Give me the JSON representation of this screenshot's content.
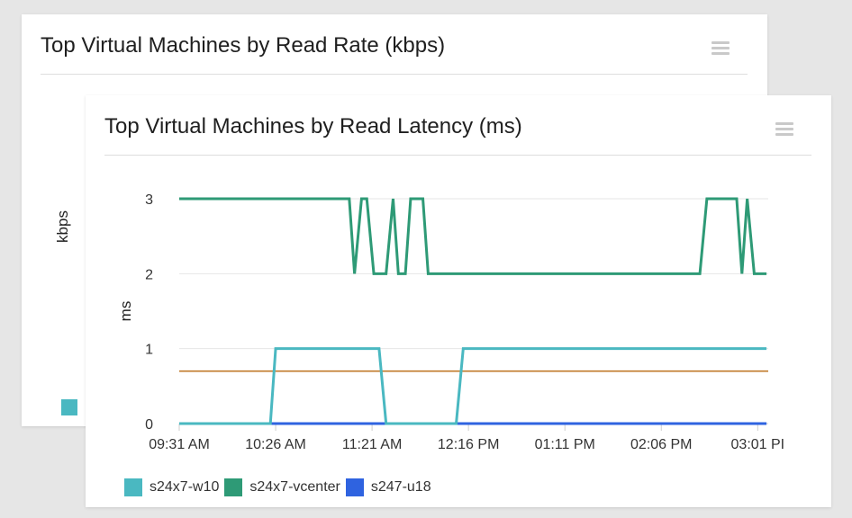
{
  "back_card": {
    "title": "Top Virtual Machines by Read Rate (kbps)",
    "ylabel": "kbps",
    "legend_swatch_color": "#4ab8c1"
  },
  "chart_data": {
    "type": "line",
    "title": "Top Virtual Machines by Read Latency (ms)",
    "xlabel": "",
    "ylabel": "ms",
    "ylim": [
      0,
      3
    ],
    "y_ticks": [
      "0",
      "1",
      "2",
      "3"
    ],
    "x_ticks": [
      "09:31 AM",
      "10:26 AM",
      "11:21 AM",
      "12:16 PM",
      "01:11 PM",
      "02:06 PM",
      "03:01 PI"
    ],
    "x_tick_minutes": [
      0,
      55,
      110,
      165,
      220,
      275,
      330
    ],
    "x_range_minutes": [
      0,
      336
    ],
    "grid": true,
    "legend_position": "bottom-left",
    "threshold": {
      "value": 0.7,
      "color": "#c07a2a"
    },
    "series": [
      {
        "name": "s24x7-w10",
        "color": "#4ab8c1",
        "x": [
          0,
          52,
          55,
          114,
          118,
          158,
          162,
          335
        ],
        "y": [
          0,
          0,
          1,
          1,
          0,
          0,
          1,
          1
        ]
      },
      {
        "name": "s24x7-vcenter",
        "color": "#2e9a76",
        "x": [
          0,
          97,
          100,
          104,
          107,
          111,
          118,
          122,
          125,
          129,
          132,
          139,
          142,
          297,
          301,
          318,
          321,
          324,
          328,
          335
        ],
        "y": [
          3,
          3,
          2,
          3,
          3,
          2,
          2,
          3,
          2,
          2,
          3,
          3,
          2,
          2,
          3,
          3,
          2,
          3,
          2,
          2
        ]
      },
      {
        "name": "s247-u18",
        "color": "#2f63e0",
        "x": [
          0,
          335
        ],
        "y": [
          0,
          0
        ]
      }
    ]
  }
}
